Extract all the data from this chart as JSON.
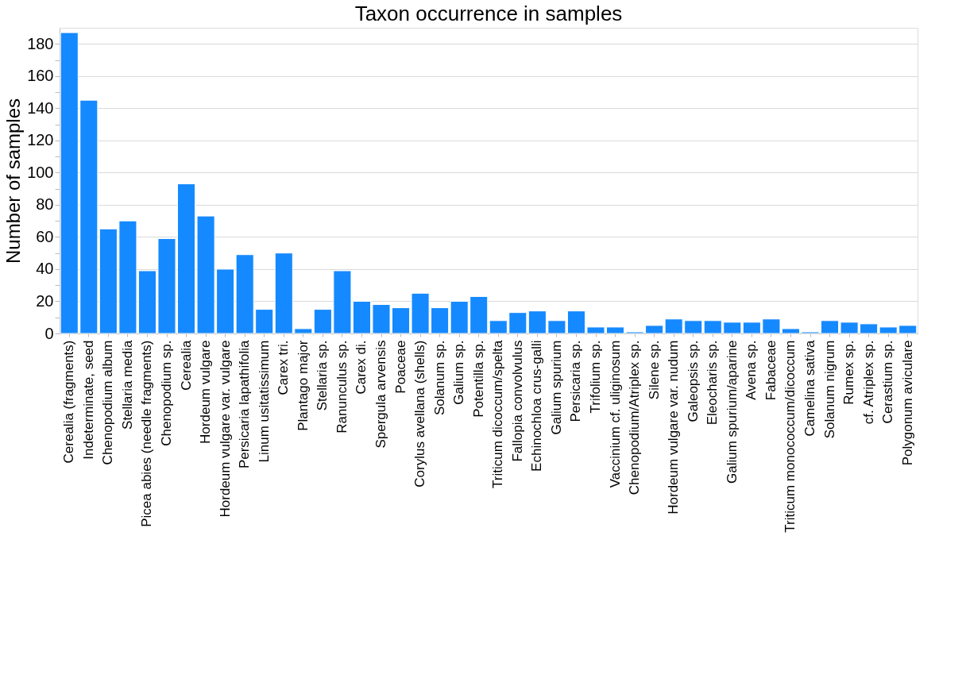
{
  "chart_data": {
    "type": "bar",
    "title": "Taxon occurrence in samples",
    "ylabel": "Number of samples",
    "categories": [
      "Cerealia (fragments)",
      "Indeterminate, seed",
      "Chenopodium album",
      "Stellaria media",
      "Picea abies (needle fragments)",
      "Chenopodium sp.",
      "Cerealia",
      "Hordeum vulgare",
      "Hordeum vulgare var. vulgare",
      "Persicaria lapathifolia",
      "Linum usitatissimum",
      "Carex tri.",
      "Plantago major",
      "Stellaria sp.",
      "Ranunculus sp.",
      "Carex di.",
      "Spergula arvensis",
      "Poaceae",
      "Corylus avellana (shells)",
      "Solanum sp.",
      "Galium sp.",
      "Potentilla sp.",
      "Triticum dicoccum/spelta",
      "Fallopia convolvulus",
      "Echinochloa crus-galli",
      "Galium spurium",
      "Persicaria sp.",
      "Trifolium sp.",
      "Vaccinium cf. uliginosum",
      "Chenopodium/Atriplex sp.",
      "Silene sp.",
      "Hordeum vulgare var. nudum",
      "Galeopsis sp.",
      "Eleocharis sp.",
      "Galium spurium/aparine",
      "Avena sp.",
      "Fabaceae",
      "Triticum monococcum/dicoccum",
      "Camelina sativa",
      "Solanum nigrum",
      "Rumex sp.",
      "cf. Atriplex sp.",
      "Cerastium sp.",
      "Polygonum aviculare"
    ],
    "series": [
      {
        "color": "#1589ff",
        "values": [
          187,
          145,
          65,
          70,
          39,
          59,
          93,
          73,
          40,
          49,
          15,
          50,
          3,
          15,
          39,
          20,
          18,
          16,
          25,
          16,
          20,
          23,
          8,
          13,
          14,
          8,
          14,
          4,
          4,
          1,
          5,
          9,
          8,
          8,
          7,
          7,
          9,
          3,
          1,
          8,
          7,
          6,
          4,
          5
        ]
      }
    ],
    "ylim": [
      0,
      190
    ],
    "yticks": [
      0,
      {
        "value": 10,
        "label": null
      },
      20,
      {
        "value": 30,
        "label": null
      },
      40,
      {
        "value": 50,
        "label": null
      },
      60,
      {
        "value": 70,
        "label": null
      },
      80,
      {
        "value": 90,
        "label": null
      },
      100,
      {
        "value": 110,
        "label": null
      },
      120,
      {
        "value": 130,
        "label": null
      },
      140,
      {
        "value": 150,
        "label": null
      },
      160,
      {
        "value": 170,
        "label": null
      },
      180
    ],
    "grid": "y",
    "legend": false
  }
}
